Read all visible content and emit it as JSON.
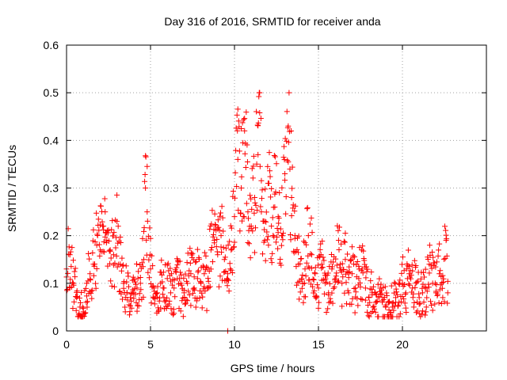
{
  "chart_data": {
    "type": "scatter",
    "title": "Day 316 of 2016, SRMTID for receiver anda",
    "xlabel": "GPS time / hours",
    "ylabel": "SRMTID / TECUs",
    "xlim": [
      0,
      25
    ],
    "ylim": [
      0,
      0.6
    ],
    "xticks": [
      0,
      5,
      10,
      15,
      20
    ],
    "xtick_labels": [
      "0",
      "5",
      "10",
      "15",
      "20"
    ],
    "yticks": [
      0,
      0.1,
      0.2,
      0.3,
      0.4,
      0.5,
      0.6
    ],
    "ytick_labels": [
      "0",
      "0.1",
      "0.2",
      "0.3",
      "0.4",
      "0.5",
      "0.6"
    ],
    "grid": true,
    "marker": "+",
    "series": [
      {
        "name": "SRMTID",
        "color": "#ff0000",
        "x": [
          0.0,
          0.2,
          0.4,
          0.6,
          0.8,
          1.0,
          1.2,
          1.4,
          1.6,
          1.8,
          2.0,
          2.2,
          2.3,
          2.4,
          2.6,
          2.8,
          3.0,
          3.2,
          3.4,
          3.6,
          3.8,
          4.0,
          4.2,
          4.4,
          4.6,
          4.7,
          4.8,
          5.0,
          5.2,
          5.4,
          5.6,
          5.8,
          6.0,
          6.2,
          6.4,
          6.6,
          6.8,
          7.0,
          7.2,
          7.4,
          7.6,
          7.8,
          8.0,
          8.2,
          8.4,
          8.6,
          8.8,
          9.0,
          9.2,
          9.4,
          9.6,
          9.8,
          10.0,
          10.2,
          10.4,
          10.6,
          10.8,
          11.0,
          11.2,
          11.4,
          11.5,
          11.6,
          11.8,
          12.0,
          12.2,
          12.4,
          12.6,
          12.8,
          13.0,
          13.2,
          13.4,
          13.6,
          13.8,
          14.0,
          14.2,
          14.4,
          14.6,
          14.8,
          15.0,
          15.2,
          15.4,
          15.6,
          15.8,
          16.0,
          16.2,
          16.4,
          16.6,
          16.8,
          17.0,
          17.2,
          17.4,
          17.6,
          17.8,
          18.0,
          18.2,
          18.4,
          18.6,
          18.8,
          19.0,
          19.2,
          19.4,
          19.6,
          19.8,
          20.0,
          20.2,
          20.4,
          20.6,
          20.8,
          21.0,
          21.2,
          21.4,
          21.6,
          21.8,
          22.0,
          22.2,
          22.4,
          22.6,
          22.7
        ],
        "y": [
          0.13,
          0.16,
          0.1,
          0.07,
          0.05,
          0.04,
          0.1,
          0.12,
          0.14,
          0.18,
          0.17,
          0.22,
          0.25,
          0.19,
          0.17,
          0.16,
          0.23,
          0.14,
          0.1,
          0.08,
          0.07,
          0.08,
          0.09,
          0.1,
          0.15,
          0.3,
          0.25,
          0.13,
          0.09,
          0.08,
          0.1,
          0.09,
          0.11,
          0.08,
          0.09,
          0.11,
          0.1,
          0.08,
          0.1,
          0.12,
          0.09,
          0.11,
          0.1,
          0.12,
          0.09,
          0.17,
          0.19,
          0.16,
          0.2,
          0.15,
          0.12,
          0.17,
          0.24,
          0.36,
          0.3,
          0.42,
          0.25,
          0.22,
          0.28,
          0.37,
          0.5,
          0.25,
          0.19,
          0.31,
          0.22,
          0.26,
          0.24,
          0.2,
          0.33,
          0.43,
          0.28,
          0.2,
          0.14,
          0.11,
          0.13,
          0.2,
          0.16,
          0.12,
          0.09,
          0.14,
          0.1,
          0.08,
          0.13,
          0.11,
          0.19,
          0.1,
          0.15,
          0.08,
          0.12,
          0.09,
          0.11,
          0.13,
          0.09,
          0.07,
          0.08,
          0.06,
          0.07,
          0.06,
          0.05,
          0.06,
          0.05,
          0.07,
          0.06,
          0.1,
          0.08,
          0.12,
          0.09,
          0.1,
          0.07,
          0.08,
          0.09,
          0.14,
          0.1,
          0.08,
          0.12,
          0.07,
          0.19,
          0.08
        ]
      }
    ],
    "outliers": [
      {
        "x": 9.6,
        "y": 0.0
      }
    ]
  }
}
